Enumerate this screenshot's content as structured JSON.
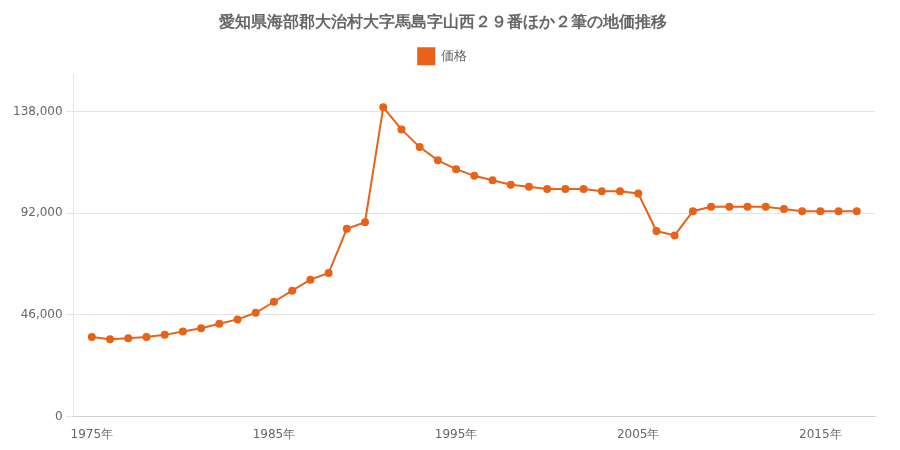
{
  "chart_data": {
    "type": "line",
    "title": "愛知県海部郡大治村大字馬島字山西２９番ほか２筆の地価推移",
    "x": [
      1975,
      1976,
      1977,
      1978,
      1979,
      1980,
      1981,
      1982,
      1983,
      1984,
      1985,
      1986,
      1987,
      1988,
      1989,
      1990,
      1991,
      1992,
      1993,
      1994,
      1995,
      1996,
      1997,
      1998,
      1999,
      2000,
      2001,
      2002,
      2003,
      2004,
      2005,
      2006,
      2007,
      2008,
      2009,
      2010,
      2011,
      2012,
      2013,
      2014,
      2015,
      2016,
      2017
    ],
    "series": [
      {
        "name": "価格",
        "color": "#e8621a",
        "marker": "circle",
        "values": [
          36000,
          35000,
          35500,
          36000,
          37000,
          38500,
          40000,
          42000,
          44000,
          47000,
          52000,
          57000,
          62000,
          65000,
          85000,
          88000,
          140000,
          130000,
          122000,
          116000,
          112000,
          109000,
          107000,
          105000,
          104000,
          103000,
          103000,
          103000,
          102000,
          102000,
          101000,
          84000,
          82000,
          93000,
          95000,
          95000,
          95000,
          95000,
          94000,
          93000,
          93000,
          93000,
          93000
        ]
      }
    ],
    "xlim": [
      1974,
      2018
    ],
    "xticks": [
      {
        "value": 1975,
        "label": "1975年"
      },
      {
        "value": 1985,
        "label": "1985年"
      },
      {
        "value": 1995,
        "label": "1995年"
      },
      {
        "value": 2005,
        "label": "2005年"
      },
      {
        "value": 2015,
        "label": "2015年"
      }
    ],
    "ylim": [
      0,
      155000
    ],
    "yticks": [
      0,
      {
        "value": 46000,
        "label": "46,000"
      },
      {
        "value": 92000,
        "label": "92,000"
      },
      {
        "value": 138000,
        "label": "138,000"
      }
    ],
    "grid": "y",
    "legend": "top"
  }
}
